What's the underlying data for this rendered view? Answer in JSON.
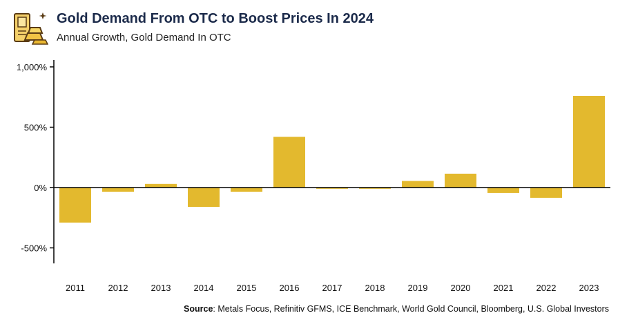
{
  "header": {
    "title": "Gold Demand From OTC to Boost Prices In 2024",
    "subtitle": "Annual Growth, Gold Demand In OTC"
  },
  "icons": {
    "logo": "gold-bars-icon"
  },
  "colors": {
    "bar": "#E3B92E",
    "title": "#1B2A4A",
    "axis": "#000000"
  },
  "chart_data": {
    "type": "bar",
    "categories": [
      "2011",
      "2012",
      "2013",
      "2014",
      "2015",
      "2016",
      "2017",
      "2018",
      "2019",
      "2020",
      "2021",
      "2022",
      "2023"
    ],
    "values": [
      -290,
      -35,
      30,
      -160,
      -35,
      420,
      -10,
      -10,
      55,
      115,
      -45,
      -85,
      760
    ],
    "ylim": [
      -620,
      1000
    ],
    "yticks": [
      -500,
      0,
      500,
      1000
    ],
    "ytick_labels": [
      "-500%",
      "0%",
      "500%",
      "1,000%"
    ],
    "grid": false,
    "legend": "none"
  },
  "source": {
    "label": "Source",
    "text": ": Metals Focus, Refinitiv GFMS, ICE Benchmark, World Gold Council, Bloomberg, U.S. Global Investors"
  }
}
